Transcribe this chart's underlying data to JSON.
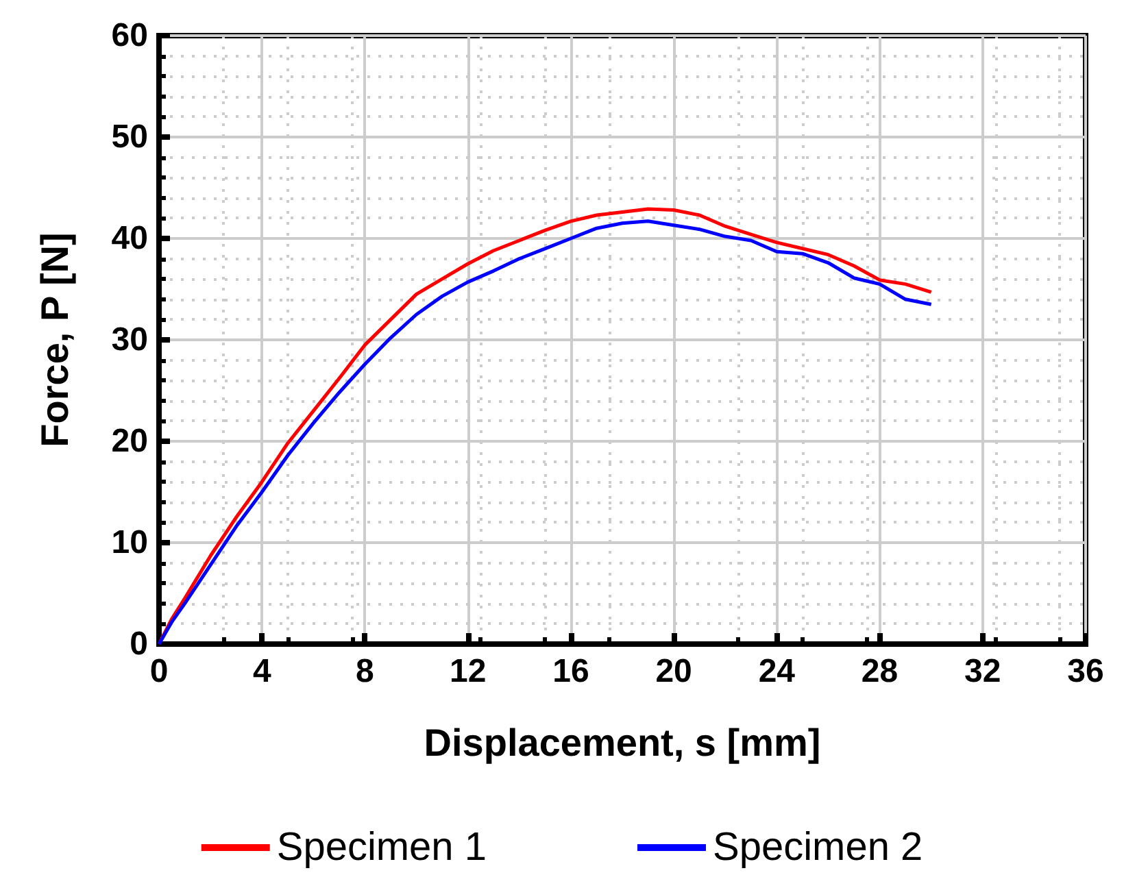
{
  "chart_data": {
    "type": "line",
    "xlabel": "Displacement, s [mm]",
    "ylabel": "Force, P [N]",
    "xlim": [
      0,
      36
    ],
    "xticks": [
      0,
      4,
      8,
      12,
      16,
      20,
      24,
      28,
      32,
      36
    ],
    "ylim": [
      0,
      60
    ],
    "yticks": [
      0,
      10,
      20,
      30,
      40,
      50,
      60
    ],
    "grid": true,
    "legend": "bottom",
    "line_style": "solid",
    "marker": "none",
    "series": [
      {
        "name": "Specimen 1",
        "color": "#ff0000",
        "x": [
          0,
          0.5,
          1,
          2,
          3,
          4,
          5,
          6,
          7,
          8,
          9,
          10,
          11,
          12,
          13,
          14,
          15,
          16,
          17,
          18,
          19,
          20,
          21,
          22,
          23,
          24,
          25,
          26,
          27,
          28,
          29,
          30
        ],
        "values": [
          0,
          2.5,
          4.5,
          8.7,
          12.5,
          16,
          19.8,
          23,
          26.2,
          29.5,
          32,
          34.5,
          36,
          37.5,
          38.8,
          39.8,
          40.8,
          41.7,
          42.3,
          42.6,
          42.9,
          42.8,
          42.3,
          41.2,
          40.4,
          39.6,
          39,
          38.4,
          37.3,
          35.9,
          35.5,
          34.7
        ]
      },
      {
        "name": "Specimen 2",
        "color": "#0000ff",
        "x": [
          0,
          0.5,
          1,
          2,
          3,
          4,
          5,
          6,
          7,
          8,
          9,
          10,
          11,
          12,
          13,
          14,
          15,
          16,
          17,
          18,
          19,
          20,
          21,
          22,
          23,
          24,
          25,
          26,
          27,
          28,
          29,
          30
        ],
        "values": [
          0,
          2.2,
          4,
          7.8,
          11.6,
          15,
          18.6,
          21.8,
          24.8,
          27.6,
          30.2,
          32.5,
          34.3,
          35.7,
          36.8,
          38,
          39,
          40,
          41,
          41.5,
          41.7,
          41.3,
          40.9,
          40.2,
          39.8,
          38.7,
          38.5,
          37.6,
          36.1,
          35.5,
          34,
          33.5
        ]
      }
    ]
  }
}
